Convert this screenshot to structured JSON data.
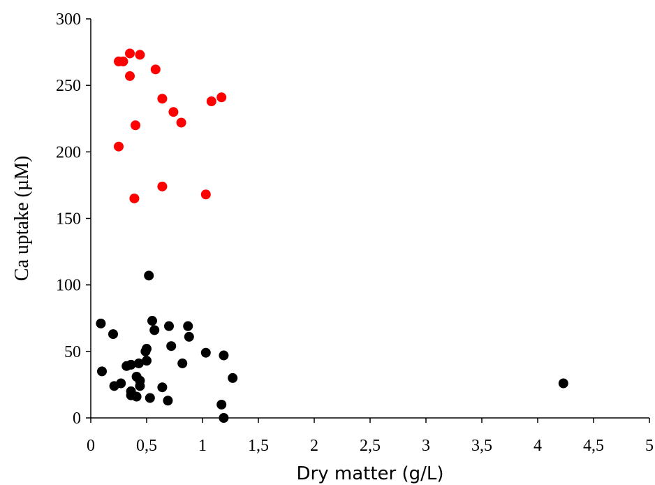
{
  "chart_data": {
    "type": "scatter",
    "xlabel": "Dry matter (g/L)",
    "ylabel": "Ca uptake (µM)",
    "xlim": [
      0,
      5
    ],
    "ylim": [
      0,
      300
    ],
    "x_ticks": [
      0,
      0.5,
      1,
      1.5,
      2,
      2.5,
      3,
      3.5,
      4,
      4.5,
      5
    ],
    "x_tick_labels": [
      "0",
      "0,5",
      "1",
      "1,5",
      "2",
      "2,5",
      "3",
      "3,5",
      "4",
      "4,5",
      "5"
    ],
    "y_ticks": [
      0,
      50,
      100,
      150,
      200,
      250,
      300
    ],
    "y_tick_labels": [
      "0",
      "50",
      "100",
      "150",
      "200",
      "250",
      "300"
    ],
    "grid": false,
    "legend": "none",
    "series": [
      {
        "color": "#ff0000",
        "points": [
          {
            "x": 0.25,
            "y": 268
          },
          {
            "x": 0.29,
            "y": 268
          },
          {
            "x": 0.35,
            "y": 274
          },
          {
            "x": 0.44,
            "y": 273
          },
          {
            "x": 0.58,
            "y": 262
          },
          {
            "x": 0.35,
            "y": 257
          },
          {
            "x": 0.64,
            "y": 240
          },
          {
            "x": 0.74,
            "y": 230
          },
          {
            "x": 0.81,
            "y": 222
          },
          {
            "x": 0.4,
            "y": 220
          },
          {
            "x": 1.08,
            "y": 238
          },
          {
            "x": 1.17,
            "y": 241
          },
          {
            "x": 0.25,
            "y": 204
          },
          {
            "x": 0.64,
            "y": 174
          },
          {
            "x": 1.03,
            "y": 168
          },
          {
            "x": 0.39,
            "y": 165
          }
        ]
      },
      {
        "color": "#000000",
        "points": [
          {
            "x": 0.52,
            "y": 107
          },
          {
            "x": 0.09,
            "y": 71
          },
          {
            "x": 0.2,
            "y": 63
          },
          {
            "x": 0.55,
            "y": 73
          },
          {
            "x": 0.57,
            "y": 66
          },
          {
            "x": 0.7,
            "y": 69
          },
          {
            "x": 0.87,
            "y": 69
          },
          {
            "x": 0.88,
            "y": 61
          },
          {
            "x": 0.72,
            "y": 54
          },
          {
            "x": 0.5,
            "y": 52
          },
          {
            "x": 0.49,
            "y": 50
          },
          {
            "x": 1.03,
            "y": 49
          },
          {
            "x": 1.19,
            "y": 47
          },
          {
            "x": 0.82,
            "y": 41
          },
          {
            "x": 0.5,
            "y": 43
          },
          {
            "x": 0.1,
            "y": 35
          },
          {
            "x": 0.32,
            "y": 39
          },
          {
            "x": 0.36,
            "y": 40
          },
          {
            "x": 0.43,
            "y": 41
          },
          {
            "x": 0.41,
            "y": 31
          },
          {
            "x": 0.44,
            "y": 28
          },
          {
            "x": 0.44,
            "y": 24
          },
          {
            "x": 0.27,
            "y": 26
          },
          {
            "x": 0.21,
            "y": 24
          },
          {
            "x": 0.36,
            "y": 20
          },
          {
            "x": 0.36,
            "y": 17
          },
          {
            "x": 0.41,
            "y": 16
          },
          {
            "x": 0.53,
            "y": 15
          },
          {
            "x": 0.64,
            "y": 23
          },
          {
            "x": 0.69,
            "y": 13
          },
          {
            "x": 1.27,
            "y": 30
          },
          {
            "x": 1.17,
            "y": 10
          },
          {
            "x": 1.19,
            "y": 0
          },
          {
            "x": 4.23,
            "y": 26
          }
        ]
      }
    ]
  }
}
